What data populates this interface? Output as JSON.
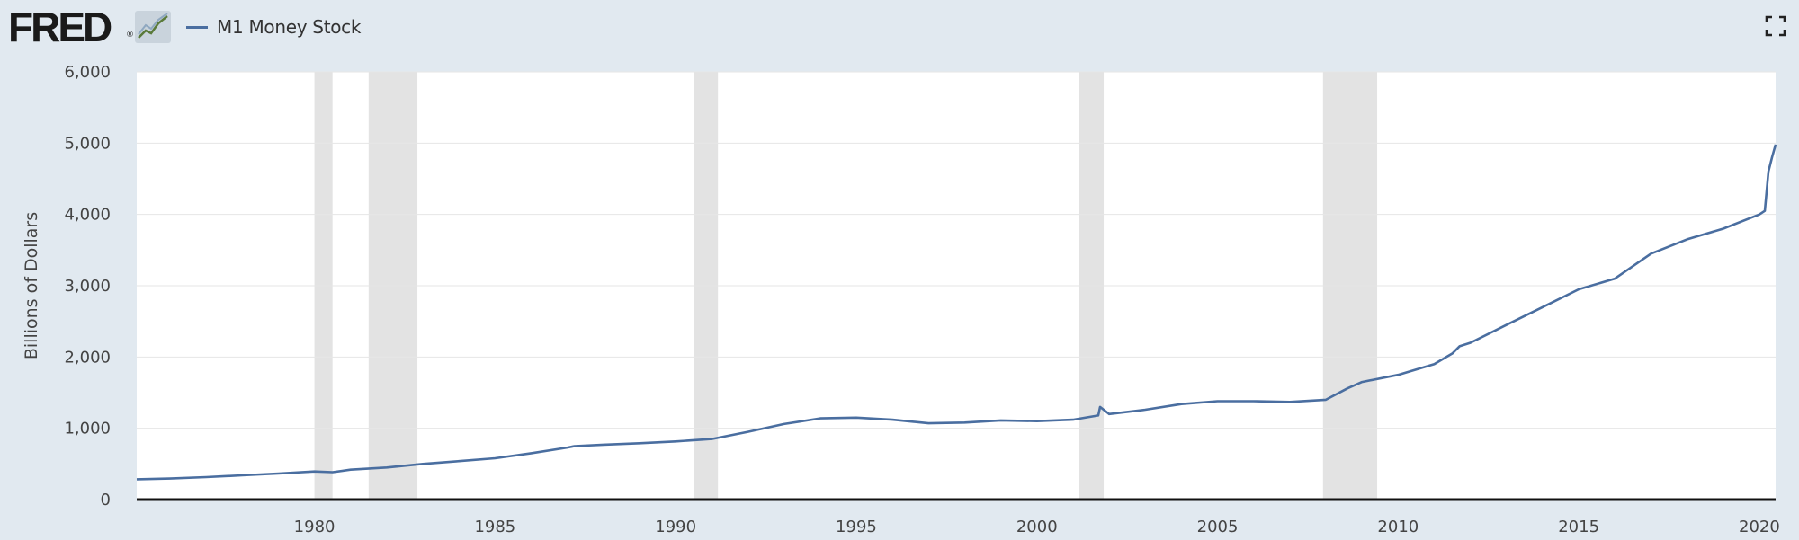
{
  "header": {
    "logo_text": "FRED",
    "logo_reg": "®",
    "graph_icon": "fred-line-graph-icon",
    "fullscreen_icon": "fullscreen-expand-icon"
  },
  "colors": {
    "series": "#4a6ea0",
    "recession": "#e3e3e3",
    "plot_bg": "#ffffff",
    "page_bg": "#e1e9f0",
    "grid": "#e6e6e6"
  },
  "chart_data": {
    "type": "line",
    "title": "",
    "xlabel": "",
    "ylabel": "Billions of Dollars",
    "xlim": [
      1975.08,
      2020.45
    ],
    "ylim": [
      0,
      6000
    ],
    "grid": true,
    "legend_position": "top-left",
    "x_ticks": [
      1980,
      1985,
      1990,
      1995,
      2000,
      2005,
      2010,
      2015,
      2020
    ],
    "y_ticks": [
      0,
      1000,
      2000,
      3000,
      4000,
      5000,
      6000
    ],
    "y_tick_labels": [
      "0",
      "1,000",
      "2,000",
      "3,000",
      "4,000",
      "5,000",
      "6,000"
    ],
    "recessions": [
      [
        1980.0,
        1980.5
      ],
      [
        1981.5,
        1982.85
      ],
      [
        1990.5,
        1991.17
      ],
      [
        2001.17,
        2001.85
      ],
      [
        2007.92,
        2009.42
      ]
    ],
    "series": [
      {
        "name": "M1 Money Stock",
        "x": [
          1975.08,
          1976,
          1977,
          1978,
          1979,
          1980,
          1980.5,
          1981,
          1982,
          1983,
          1984,
          1985,
          1986,
          1987,
          1987.2,
          1988,
          1989,
          1990,
          1991,
          1992,
          1993,
          1994,
          1995,
          1996,
          1997,
          1998,
          1999,
          2000,
          2001,
          2001.7,
          2001.75,
          2002,
          2003,
          2004,
          2005,
          2006,
          2007,
          2008,
          2008.6,
          2009,
          2010,
          2011,
          2011.5,
          2011.7,
          2012,
          2013,
          2014,
          2015,
          2016,
          2017,
          2018,
          2019,
          2020.0,
          2020.15,
          2020.25,
          2020.35,
          2020.45
        ],
        "values": [
          285,
          295,
          315,
          340,
          365,
          395,
          385,
          420,
          450,
          500,
          540,
          580,
          650,
          730,
          750,
          770,
          790,
          815,
          850,
          950,
          1060,
          1140,
          1150,
          1120,
          1070,
          1080,
          1110,
          1100,
          1120,
          1180,
          1300,
          1200,
          1260,
          1340,
          1380,
          1380,
          1370,
          1400,
          1560,
          1650,
          1750,
          1900,
          2050,
          2150,
          2200,
          2450,
          2700,
          2950,
          3100,
          3450,
          3650,
          3800,
          4000,
          4050,
          4600,
          4800,
          4980
        ]
      }
    ]
  }
}
